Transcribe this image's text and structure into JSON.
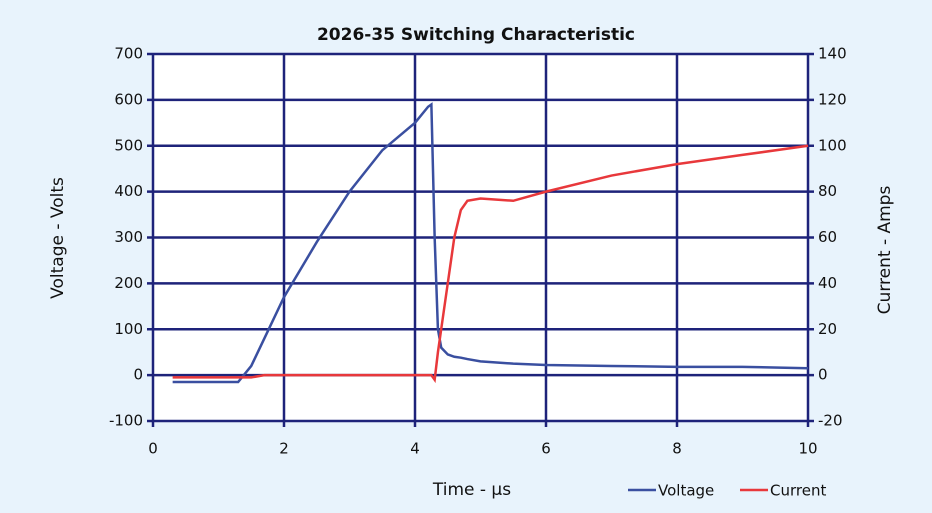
{
  "chart_data": {
    "type": "line",
    "title": "2026-35 Switching Characteristic",
    "x_label": "Time - µs",
    "y_label": "Voltage - Volts",
    "y2_label": "Current - Amps",
    "x": [
      0.3,
      1.0,
      1.3,
      1.5,
      1.7,
      2.0,
      2.5,
      3.0,
      3.5,
      4.0,
      4.2,
      4.25,
      4.3,
      4.35,
      4.4,
      4.5,
      4.6,
      4.7,
      4.8,
      5,
      5.5,
      6,
      7,
      8,
      9,
      10
    ],
    "series": [
      {
        "name": "Voltage",
        "color": "#3a4fa0",
        "axis": "y",
        "values": [
          -15,
          -15,
          -15,
          20,
          80,
          170,
          290,
          400,
          490,
          550,
          585,
          590,
          300,
          100,
          60,
          45,
          40,
          38,
          35,
          30,
          25,
          22,
          20,
          18,
          18,
          15
        ]
      },
      {
        "name": "Current",
        "color": "#e8383b",
        "axis": "y2",
        "values": [
          -1,
          -1,
          -1,
          -1,
          0,
          0,
          0,
          0,
          0,
          0,
          0,
          0,
          -2,
          10,
          20,
          40,
          60,
          72,
          76,
          77,
          76,
          80,
          87,
          92,
          96,
          100
        ]
      }
    ],
    "xlim": [
      0,
      10
    ],
    "xticks": [
      0,
      2,
      4,
      6,
      8,
      10
    ],
    "ylim": [
      -100,
      700
    ],
    "yticks": [
      -100,
      0,
      100,
      200,
      300,
      400,
      500,
      600,
      700
    ],
    "y2lim": [
      -20,
      140
    ],
    "y2ticks": [
      -20,
      0,
      20,
      40,
      60,
      80,
      100,
      120,
      140
    ],
    "grid": true,
    "legend": "bottom-right"
  }
}
